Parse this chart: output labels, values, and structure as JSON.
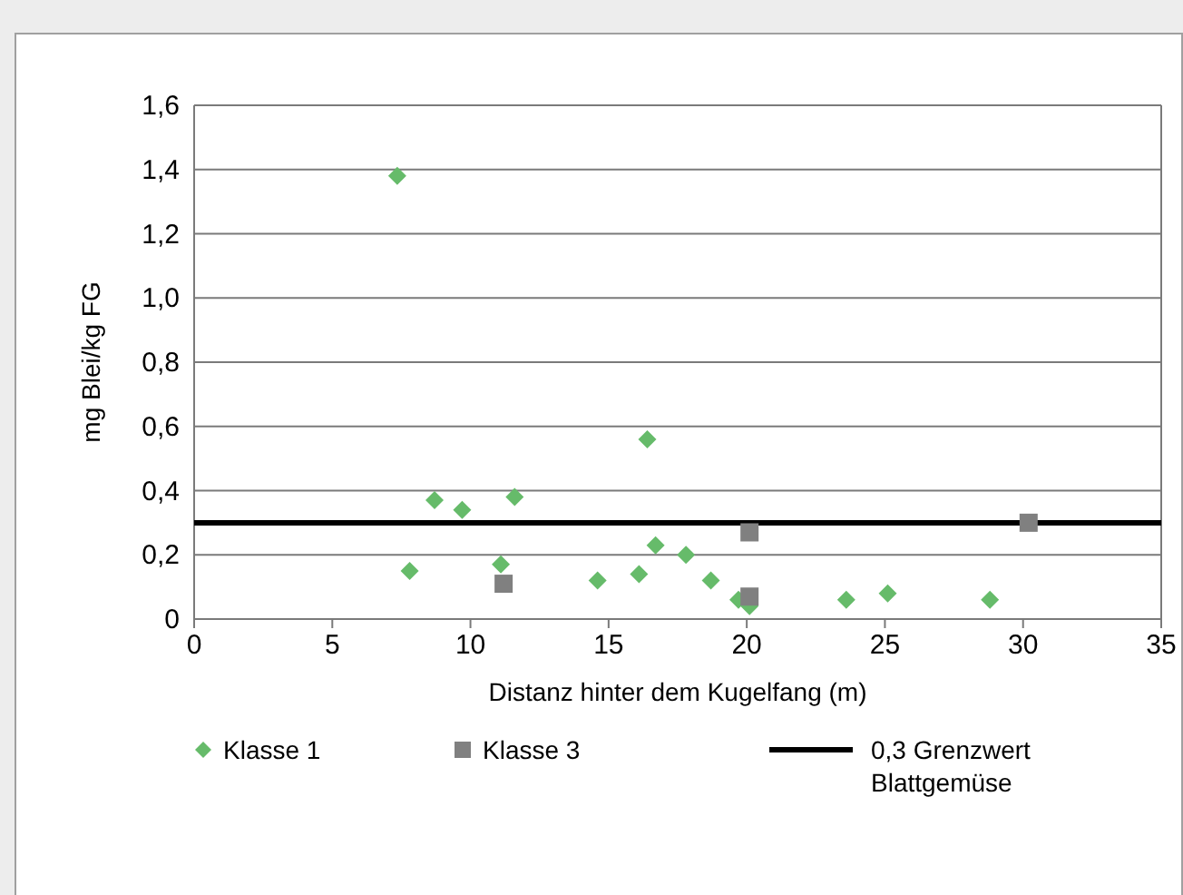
{
  "chart_data": {
    "type": "scatter",
    "xlabel": "Distanz hinter dem Kugelfang (m)",
    "ylabel": "mg Blei/kg FG",
    "xlim": [
      0,
      35
    ],
    "xticks": [
      0,
      5,
      10,
      15,
      20,
      25,
      30,
      35
    ],
    "ylim": [
      0,
      1.6
    ],
    "yticks": [
      0,
      {
        "value": 0.2,
        "label": "0,2"
      },
      {
        "value": 0.4,
        "label": "0,4"
      },
      {
        "value": 0.6,
        "label": "0,6"
      },
      {
        "value": 0.8,
        "label": "0,8"
      },
      {
        "value": 1.0,
        "label": "1,0"
      },
      {
        "value": 1.2,
        "label": "1,2"
      },
      {
        "value": 1.4,
        "label": "1,4"
      },
      {
        "value": 1.6,
        "label": "1,6"
      }
    ],
    "grid": "y",
    "legend": "bottom",
    "series": [
      {
        "name": "Klasse 1",
        "color": "#66bb6a",
        "marker": "diamond",
        "x": [
          7.35,
          7.8,
          8.7,
          9.7,
          11.6,
          11.1,
          14.6,
          16.1,
          16.4,
          16.7,
          17.8,
          18.7,
          19.7,
          20.1,
          23.6,
          25.1,
          28.8
        ],
        "values": [
          1.38,
          0.15,
          0.37,
          0.34,
          0.38,
          0.17,
          0.12,
          0.14,
          0.56,
          0.23,
          0.2,
          0.12,
          0.06,
          0.04,
          0.06,
          0.08,
          0.06
        ]
      },
      {
        "name": "Klasse 3",
        "color": "#808080",
        "marker": "square",
        "x": [
          11.2,
          20.1,
          20.1,
          30.2
        ],
        "values": [
          0.11,
          0.27,
          0.07,
          0.3
        ]
      }
    ],
    "ref_lines": [
      {
        "axis": "y",
        "value": 0.3,
        "label": "0,3 Grenzwert Blattgemüse",
        "color": "#000000",
        "line_style": "solid"
      }
    ]
  }
}
